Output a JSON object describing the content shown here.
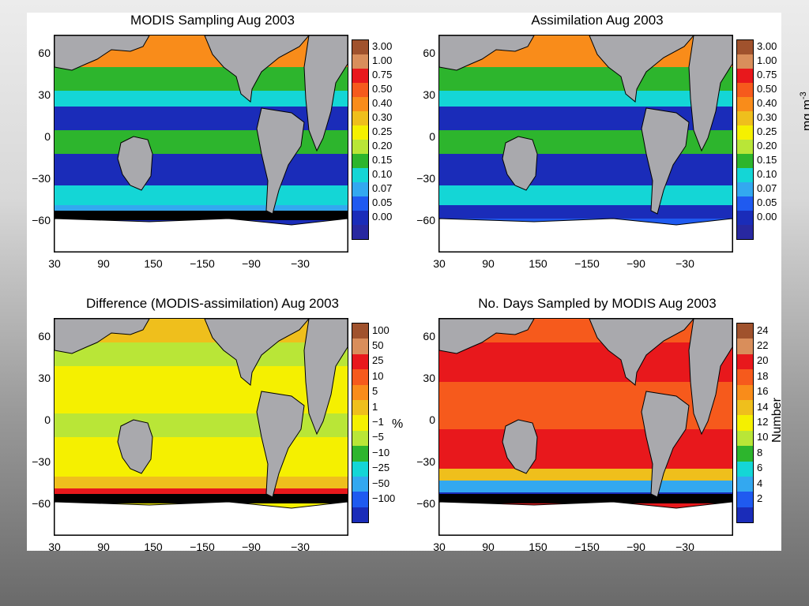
{
  "chart_data": [
    {
      "type": "heatmap",
      "title": "MODIS Sampling Aug 2003",
      "xticks": [
        "30",
        "90",
        "150",
        "−150",
        "−90",
        "−30"
      ],
      "yticks": [
        "60",
        "30",
        "0",
        "−30",
        "−60"
      ],
      "colorbar": {
        "labels": [
          "3.00",
          "1.00",
          "0.75",
          "0.50",
          "0.40",
          "0.30",
          "0.25",
          "0.20",
          "0.15",
          "0.10",
          "0.07",
          "0.05",
          "0.00"
        ],
        "colors": [
          "#a0522d",
          "#d98e5b",
          "#e8181c",
          "#f65a1c",
          "#f98c1a",
          "#efbf1c",
          "#f5f000",
          "#b9e637",
          "#2db52d",
          "#14d6d6",
          "#33a8f0",
          "#1f5af0",
          "#1a2cb9",
          "#2828a0"
        ]
      },
      "unit_label": ""
    },
    {
      "type": "heatmap",
      "title": "Assimilation Aug 2003",
      "xticks": [
        "30",
        "90",
        "150",
        "−150",
        "−90",
        "−30"
      ],
      "yticks": [
        "60",
        "30",
        "0",
        "−30",
        "−60"
      ],
      "colorbar": {
        "labels": [
          "3.00",
          "1.00",
          "0.75",
          "0.50",
          "0.40",
          "0.30",
          "0.25",
          "0.20",
          "0.15",
          "0.10",
          "0.07",
          "0.05",
          "0.00"
        ],
        "colors": [
          "#a0522d",
          "#d98e5b",
          "#e8181c",
          "#f65a1c",
          "#f98c1a",
          "#efbf1c",
          "#f5f000",
          "#b9e637",
          "#2db52d",
          "#14d6d6",
          "#33a8f0",
          "#1f5af0",
          "#1a2cb9",
          "#2828a0"
        ]
      },
      "unit_label": "mg m-3"
    },
    {
      "type": "heatmap",
      "title": "Difference (MODIS-assimilation) Aug 2003",
      "xticks": [
        "30",
        "90",
        "150",
        "−150",
        "−90",
        "−30"
      ],
      "yticks": [
        "60",
        "30",
        "0",
        "−30",
        "−60"
      ],
      "colorbar": {
        "labels": [
          "100",
          "50",
          "25",
          "10",
          "5",
          "1",
          "−1",
          "−5",
          "−10",
          "−25",
          "−50",
          "−100"
        ],
        "colors": [
          "#a0522d",
          "#d98e5b",
          "#e8181c",
          "#f65a1c",
          "#f98c1a",
          "#efbf1c",
          "#f5f000",
          "#b9e637",
          "#2db52d",
          "#14d6d6",
          "#33a8f0",
          "#1f5af0",
          "#1a2cb9"
        ]
      },
      "unit_label": "%"
    },
    {
      "type": "heatmap",
      "title": "No. Days Sampled by MODIS Aug 2003",
      "xticks": [
        "30",
        "90",
        "150",
        "−150",
        "−90",
        "−30"
      ],
      "yticks": [
        "60",
        "30",
        "0",
        "−30",
        "−60"
      ],
      "colorbar": {
        "labels": [
          "24",
          "22",
          "20",
          "18",
          "16",
          "14",
          "12",
          "10",
          "8",
          "6",
          "4",
          "2"
        ],
        "colors": [
          "#a0522d",
          "#d98e5b",
          "#e8181c",
          "#f65a1c",
          "#f98c1a",
          "#efbf1c",
          "#f5f000",
          "#b9e637",
          "#2db52d",
          "#14d6d6",
          "#33a8f0",
          "#1f5af0",
          "#1a2cb9"
        ]
      },
      "unit_label": "Number"
    }
  ]
}
